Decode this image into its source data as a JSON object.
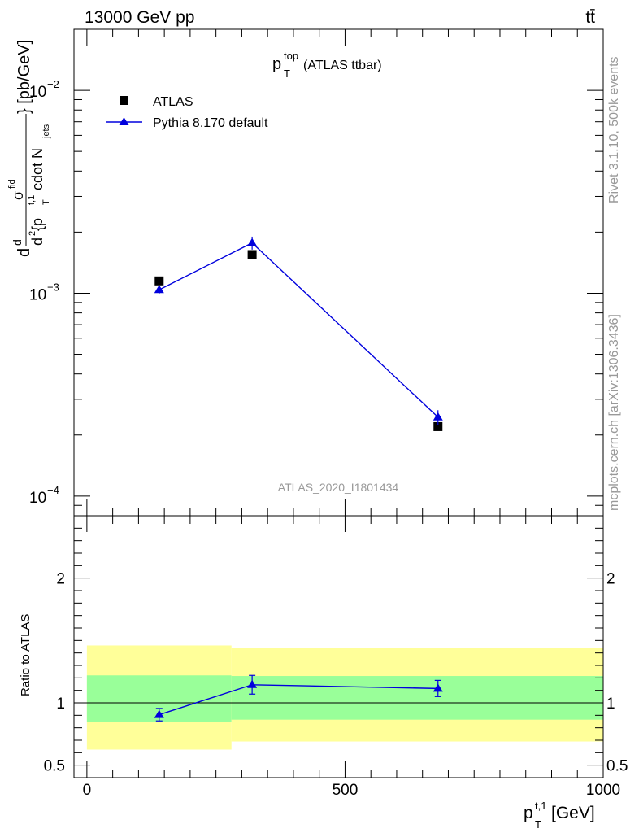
{
  "header": {
    "left": "13000 GeV pp",
    "right": "tt̄"
  },
  "side_labels": {
    "rivet": "Rivet 3.1.10,  500k events",
    "source": "mcplots.cern.ch [arXiv:1306.3436]"
  },
  "watermark": "ATLAS_2020_I1801434",
  "colors": {
    "data": "#000000",
    "mc": "#0000dd",
    "band_inner": "#99ff99",
    "band_outer": "#ffff99",
    "gray": "#999999"
  },
  "chart_data": [
    {
      "type": "scatter",
      "title": {
        "main": "p",
        "sub": "T",
        "sup": "top",
        "rest": " (ATLAS ttbar)"
      },
      "ylabel": "d d²σ^{fid} / d² {p_T^{t,1} cdot N_jets} [pb/GeV]",
      "ylabel_parts": {
        "d_outer": "d",
        "d2": "d",
        "sigma": "σ",
        "sigma_sup": "fid",
        "close": "} [pb/GeV]",
        "den_d": "d",
        "den_sup": "2",
        "den_open": " {p",
        "den_t_sub": "T",
        "den_t_sup": "t,1",
        "den_cdot": " cdot N",
        "den_jets": "jets"
      },
      "yscale": "log",
      "ylim": [
        8e-05,
        0.02
      ],
      "yticks": [
        {
          "v": 0.0001,
          "base": "10",
          "exp": "−4"
        },
        {
          "v": 0.001,
          "base": "10",
          "exp": "−3"
        },
        {
          "v": 0.01,
          "base": "10",
          "exp": "−2"
        }
      ],
      "xlim": [
        -25,
        1000
      ],
      "series": [
        {
          "name": "ATLAS",
          "marker": "square",
          "x": [
            140,
            320,
            680
          ],
          "y": [
            0.00115,
            0.00155,
            0.00022
          ]
        },
        {
          "name": "Pythia 8.170 default",
          "marker": "triangle",
          "x": [
            140,
            320,
            680
          ],
          "y": [
            0.00104,
            0.00177,
            0.000245
          ],
          "yerr": [
            5e-05,
            0.00013,
            2e-05
          ]
        }
      ],
      "legend": [
        "ATLAS",
        "Pythia 8.170 default"
      ]
    },
    {
      "type": "scatter",
      "ylabel": "Ratio to ATLAS",
      "ylim": [
        0.4,
        2.5
      ],
      "yticks": [
        {
          "v": 0.5,
          "label": "0.5"
        },
        {
          "v": 1,
          "label": "1"
        },
        {
          "v": 2,
          "label": "2"
        }
      ],
      "xlim": [
        -25,
        1000
      ],
      "xticks": [
        {
          "v": 0,
          "label": "0"
        },
        {
          "v": 500,
          "label": "500"
        },
        {
          "v": 1000,
          "label": "1000"
        }
      ],
      "xlabel": {
        "main": "p",
        "sub": "T",
        "sup": "t,1",
        "rest": " [GeV]"
      },
      "bands": [
        {
          "x0": 0,
          "x1": 280,
          "inner": [
            0.845,
            1.22
          ],
          "outer": [
            0.625,
            1.46
          ]
        },
        {
          "x0": 280,
          "x1": 1000,
          "inner": [
            0.865,
            1.215
          ],
          "outer": [
            0.69,
            1.44
          ]
        }
      ],
      "series": [
        {
          "name": "Pythia 8.170 default",
          "x": [
            140,
            320,
            680
          ],
          "y": [
            0.905,
            1.145,
            1.115
          ],
          "yerr": [
            0.05,
            0.075,
            0.065
          ]
        }
      ]
    }
  ]
}
